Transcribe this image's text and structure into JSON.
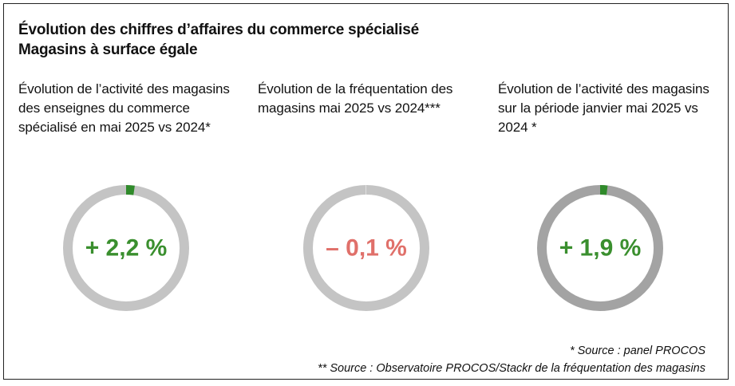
{
  "header": {
    "title_line1": "Évolution des chiffres d’affaires du commerce spécialisé",
    "title_line2": "Magasins à surface égale"
  },
  "footnotes": {
    "note1": "* Source : panel PROCOS",
    "note2": "** Source : Observatoire PROCOS/Stackr de la fréquentation des magasins"
  },
  "chart_data": [
    {
      "type": "pie",
      "title": "Évolution de l’activité des magasins des enseignes du commerce spécialisé en mai 2025 vs 2024*",
      "value": 2.2,
      "unit": "%",
      "label": "+ 2,2 %",
      "direction": "positive",
      "value_color": "#3a8f2e",
      "ring_color": "#c4c4c4",
      "segment_color": "#2f8a2a"
    },
    {
      "type": "pie",
      "title": "Évolution de la fréquentation des magasins mai 2025 vs 2024***",
      "value": -0.1,
      "unit": "%",
      "label": "– 0,1 %",
      "direction": "negative",
      "value_color": "#e0706a",
      "ring_color": "#c4c4c4",
      "segment_color": "#ffffff"
    },
    {
      "type": "pie",
      "title": "Évolution de l’activité des magasins sur la période janvier mai 2025 vs 2024 *",
      "value": 1.9,
      "unit": "%",
      "label": "+ 1,9 %",
      "direction": "positive",
      "value_color": "#3a8f2e",
      "ring_color": "#a3a3a3",
      "segment_color": "#2f8a2a"
    }
  ]
}
